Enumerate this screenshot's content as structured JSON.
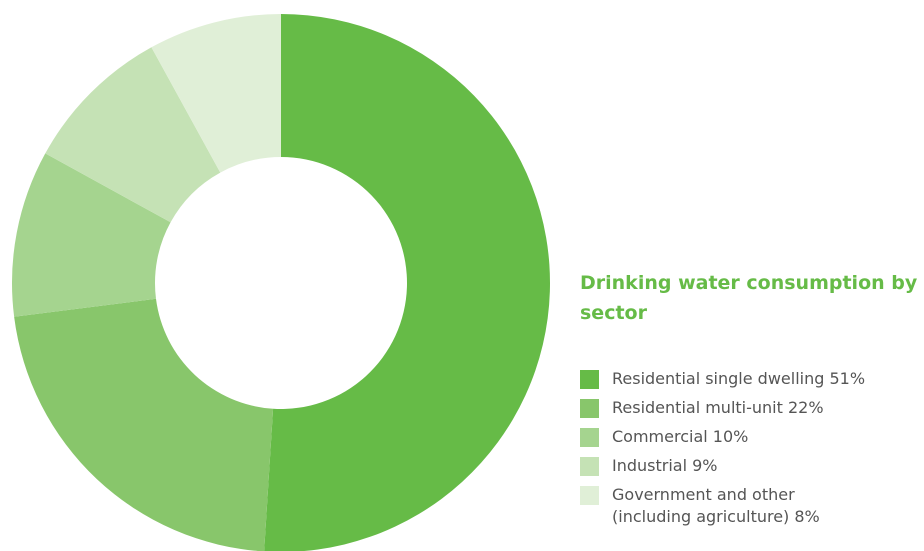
{
  "chart_data": {
    "type": "pie",
    "style": "donut",
    "title": "Drinking water consumption by sector",
    "slices": [
      {
        "label": "Residential single dwelling 51%",
        "value": 51,
        "color": "#66bb47"
      },
      {
        "label": "Residential multi-unit 22%",
        "value": 22,
        "color": "#88c66b"
      },
      {
        "label": "Commercial 10%",
        "value": 10,
        "color": "#a5d48f"
      },
      {
        "label": "Industrial 9%",
        "value": 9,
        "color": "#c5e2b5"
      },
      {
        "label": "Government and other (including agriculture) 8%",
        "value": 8,
        "color": "#e0efd7"
      }
    ]
  }
}
